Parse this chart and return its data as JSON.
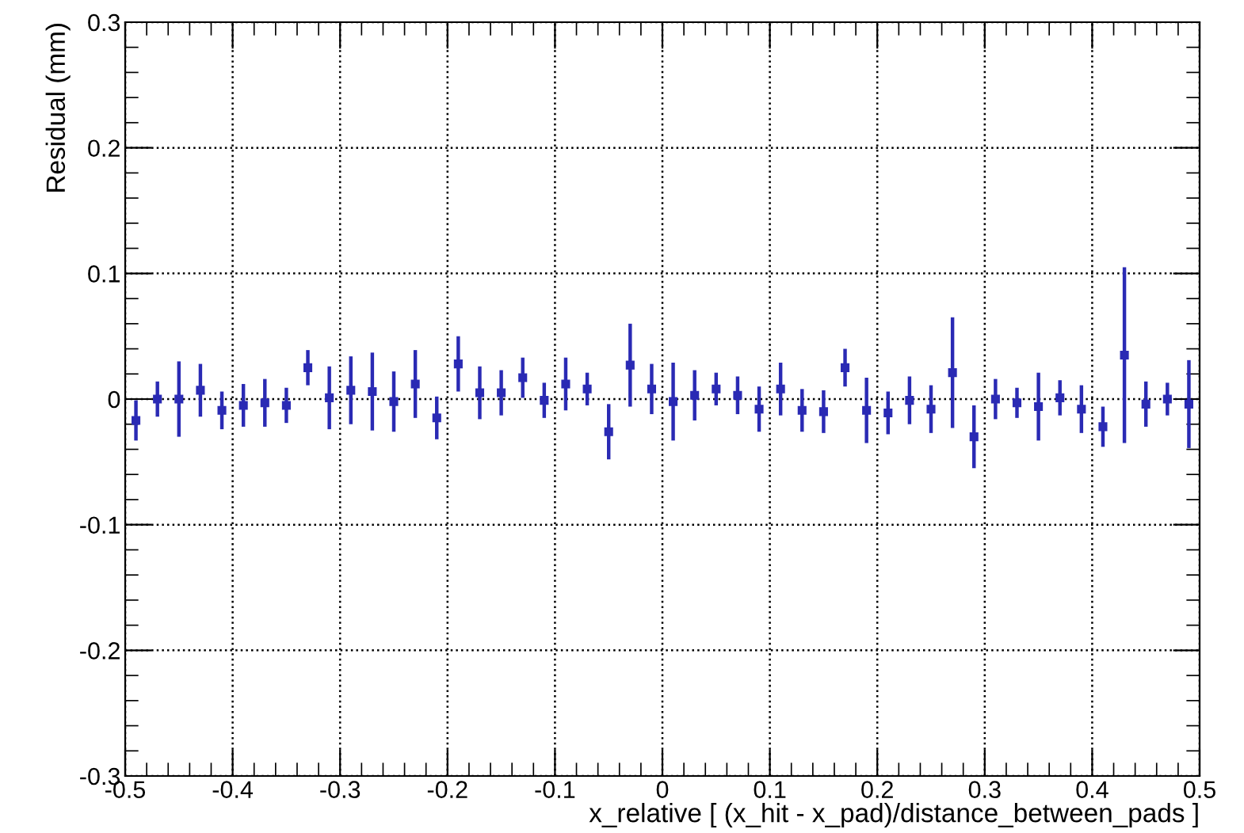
{
  "chart_data": {
    "type": "scatter",
    "xlabel": "x_relative [ (x_hit - x_pad)/distance_between_pads ]",
    "ylabel": "Residual (mm)",
    "x": [
      -0.49,
      -0.47,
      -0.45,
      -0.43,
      -0.41,
      -0.39,
      -0.37,
      -0.35,
      -0.33,
      -0.31,
      -0.29,
      -0.27,
      -0.25,
      -0.23,
      -0.21,
      -0.19,
      -0.17,
      -0.15,
      -0.13,
      -0.11,
      -0.09,
      -0.07,
      -0.05,
      -0.03,
      -0.01,
      0.01,
      0.03,
      0.05,
      0.07,
      0.09,
      0.11,
      0.13,
      0.15,
      0.17,
      0.19,
      0.21,
      0.23,
      0.25,
      0.27,
      0.29,
      0.31,
      0.33,
      0.35,
      0.37,
      0.39,
      0.41,
      0.43,
      0.45,
      0.47,
      0.49
    ],
    "series": [
      {
        "color": "#2a2ab4",
        "values": [
          -0.017,
          0.0,
          0.0,
          0.007,
          -0.009,
          -0.005,
          -0.003,
          -0.005,
          0.025,
          0.001,
          0.007,
          0.006,
          -0.002,
          0.012,
          -0.015,
          0.028,
          0.005,
          0.005,
          0.017,
          -0.001,
          0.012,
          0.008,
          -0.026,
          0.027,
          0.008,
          -0.002,
          0.003,
          0.008,
          0.003,
          -0.008,
          0.008,
          -0.009,
          -0.01,
          0.025,
          -0.009,
          -0.011,
          -0.001,
          -0.008,
          0.021,
          -0.03,
          0.0,
          -0.003,
          -0.006,
          0.001,
          -0.008,
          -0.022,
          0.035,
          -0.004,
          0.0,
          -0.004
        ],
        "errors": [
          0.016,
          0.014,
          0.03,
          0.021,
          0.015,
          0.017,
          0.019,
          0.014,
          0.014,
          0.025,
          0.027,
          0.031,
          0.024,
          0.027,
          0.017,
          0.022,
          0.021,
          0.018,
          0.016,
          0.014,
          0.021,
          0.013,
          0.022,
          0.033,
          0.02,
          0.031,
          0.02,
          0.013,
          0.015,
          0.018,
          0.021,
          0.017,
          0.017,
          0.015,
          0.026,
          0.017,
          0.019,
          0.019,
          0.044,
          0.025,
          0.016,
          0.012,
          0.027,
          0.014,
          0.019,
          0.016,
          0.07,
          0.018,
          0.013,
          0.035
        ]
      }
    ],
    "xlim": [
      -0.5,
      0.5
    ],
    "xticks": [
      -0.5,
      -0.4,
      -0.3,
      -0.2,
      -0.1,
      0,
      0.1,
      0.2,
      0.3,
      0.4,
      0.5
    ],
    "ylim": [
      -0.3,
      0.3
    ],
    "yticks": [
      -0.3,
      -0.2,
      -0.1,
      0,
      0.1,
      0.2,
      0.3
    ],
    "grid": true,
    "marker": "square"
  }
}
